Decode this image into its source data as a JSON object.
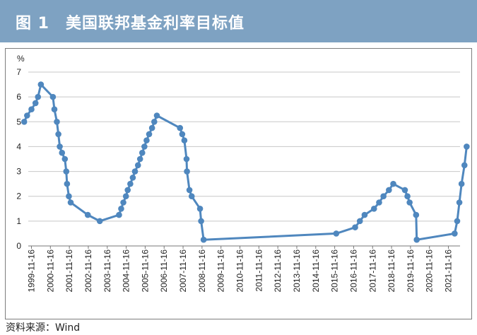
{
  "title": "图 1　美国联邦基金利率目标值",
  "source": "资料来源：Wind",
  "colors": {
    "title_bg": "#7ea2c2",
    "series": "#4f87be",
    "grid": "#c8c8c8"
  },
  "chart_data": {
    "type": "line",
    "title": "",
    "ylabel": "%",
    "xlabel": "",
    "ylim": [
      0,
      7
    ],
    "yticks": [
      0,
      1,
      2,
      3,
      4,
      5,
      6,
      7
    ],
    "grid": true,
    "legend": "none",
    "xticks": [
      "1999-11-16",
      "2000-11-16",
      "2001-11-16",
      "2002-11-16",
      "2003-11-16",
      "2004-11-16",
      "2005-11-16",
      "2006-11-16",
      "2007-11-16",
      "2008-11-16",
      "2009-11-16",
      "2010-11-16",
      "2011-11-16",
      "2012-11-16",
      "2013-11-16",
      "2014-11-16",
      "2015-11-16",
      "2016-11-16",
      "2017-11-16",
      "2018-11-16",
      "2019-11-16",
      "2020-11-16",
      "2021-11-16"
    ],
    "series": [
      {
        "name": "",
        "points": [
          [
            "1999-06-30",
            5.0
          ],
          [
            "1999-08-24",
            5.25
          ],
          [
            "1999-11-16",
            5.5
          ],
          [
            "2000-02-02",
            5.75
          ],
          [
            "2000-03-21",
            6.0
          ],
          [
            "2000-05-16",
            6.5
          ],
          [
            "2001-01-03",
            6.0
          ],
          [
            "2001-01-31",
            5.5
          ],
          [
            "2001-03-20",
            5.0
          ],
          [
            "2001-04-18",
            4.5
          ],
          [
            "2001-05-15",
            4.0
          ],
          [
            "2001-06-27",
            3.75
          ],
          [
            "2001-08-21",
            3.5
          ],
          [
            "2001-09-17",
            3.0
          ],
          [
            "2001-10-02",
            2.5
          ],
          [
            "2001-11-06",
            2.0
          ],
          [
            "2001-12-11",
            1.75
          ],
          [
            "2002-11-06",
            1.25
          ],
          [
            "2003-06-25",
            1.0
          ],
          [
            "2004-06-30",
            1.25
          ],
          [
            "2004-08-10",
            1.5
          ],
          [
            "2004-09-21",
            1.75
          ],
          [
            "2004-11-10",
            2.0
          ],
          [
            "2004-12-14",
            2.25
          ],
          [
            "2005-02-02",
            2.5
          ],
          [
            "2005-03-22",
            2.75
          ],
          [
            "2005-05-03",
            3.0
          ],
          [
            "2005-06-30",
            3.25
          ],
          [
            "2005-08-09",
            3.5
          ],
          [
            "2005-09-20",
            3.75
          ],
          [
            "2005-11-01",
            4.0
          ],
          [
            "2005-12-13",
            4.25
          ],
          [
            "2006-01-31",
            4.5
          ],
          [
            "2006-03-28",
            4.75
          ],
          [
            "2006-05-10",
            5.0
          ],
          [
            "2006-06-29",
            5.25
          ],
          [
            "2007-09-18",
            4.75
          ],
          [
            "2007-10-31",
            4.5
          ],
          [
            "2007-12-11",
            4.25
          ],
          [
            "2008-01-22",
            3.5
          ],
          [
            "2008-01-30",
            3.0
          ],
          [
            "2008-03-18",
            2.25
          ],
          [
            "2008-04-30",
            2.0
          ],
          [
            "2008-10-08",
            1.5
          ],
          [
            "2008-10-29",
            1.0
          ],
          [
            "2008-12-16",
            0.25
          ],
          [
            "2015-12-16",
            0.5
          ],
          [
            "2016-12-14",
            0.75
          ],
          [
            "2017-03-15",
            1.0
          ],
          [
            "2017-06-14",
            1.25
          ],
          [
            "2017-12-13",
            1.5
          ],
          [
            "2018-03-21",
            1.75
          ],
          [
            "2018-06-13",
            2.0
          ],
          [
            "2018-09-26",
            2.25
          ],
          [
            "2018-12-19",
            2.5
          ],
          [
            "2019-07-31",
            2.25
          ],
          [
            "2019-09-18",
            2.0
          ],
          [
            "2019-10-30",
            1.75
          ],
          [
            "2020-03-03",
            1.25
          ],
          [
            "2020-03-15",
            0.25
          ],
          [
            "2022-03-16",
            0.5
          ],
          [
            "2022-05-04",
            1.0
          ],
          [
            "2022-06-15",
            1.75
          ],
          [
            "2022-07-27",
            2.5
          ],
          [
            "2022-09-21",
            3.25
          ],
          [
            "2022-11-02",
            4.0
          ]
        ]
      }
    ]
  }
}
